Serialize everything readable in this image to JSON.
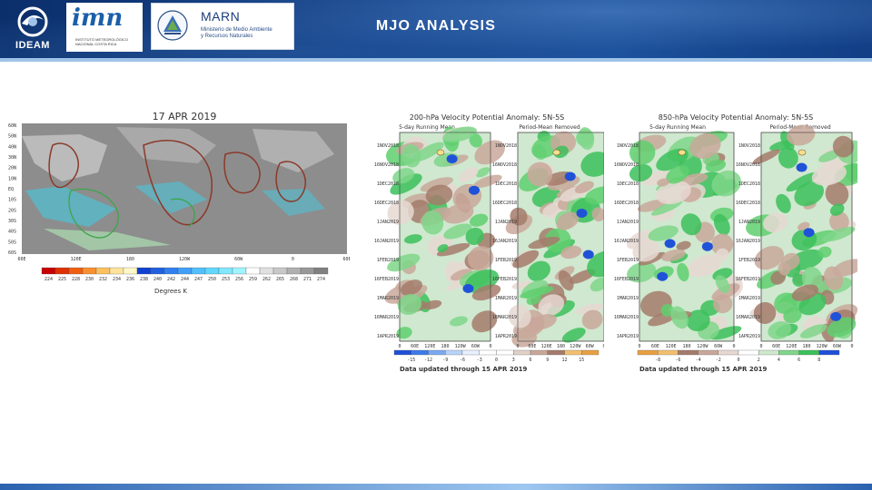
{
  "header": {
    "title": "MJO ANALYSIS",
    "logos": {
      "ideam": "IDEAM",
      "imn": "imn",
      "imn_sub": "INSTITUTO METEOROLÓGICO NACIONAL COSTA RICA",
      "marn": "MARN",
      "marn_sub_1": "Ministerio de Medio Ambiente",
      "marn_sub_2": "y Recursos Naturales"
    }
  },
  "olr_map": {
    "date": "17 APR 2019",
    "lat_labels": [
      "60N",
      "50N",
      "40N",
      "30N",
      "20N",
      "10N",
      "EQ",
      "10S",
      "20S",
      "30S",
      "40S",
      "50S",
      "60S"
    ],
    "lon_labels": [
      "60E",
      "120E",
      "180",
      "120W",
      "60W",
      "0",
      "60E"
    ],
    "colorbar_values": [
      "224",
      "225",
      "228",
      "230",
      "232",
      "234",
      "236",
      "238",
      "240",
      "242",
      "244",
      "247",
      "250",
      "253",
      "256",
      "259",
      "262",
      "265",
      "268",
      "271",
      "274"
    ],
    "colorbar_label": "Degrees K"
  },
  "chi200": {
    "title": "200-hPa Velocity Potential Anomaly: 5N-5S",
    "left_subtitle": "5-day Running Mean",
    "right_subtitle": "Period-Mean Removed",
    "dates": [
      "1NOV2018",
      "16NOV2018",
      "1DEC2018",
      "16DEC2018",
      "1JAN2019",
      "16JAN2019",
      "1FEB2019",
      "16FEB2019",
      "1MAR2019",
      "16MAR2019",
      "1APR2019"
    ],
    "lon_labels": [
      "0",
      "60E",
      "120E",
      "180",
      "120W",
      "60W",
      "0"
    ],
    "colorbar_values": [
      "-15",
      "-12",
      "-9",
      "-6",
      "-3",
      "0",
      "3",
      "6",
      "9",
      "12",
      "15"
    ],
    "updated": "Data updated through 15 APR 2019"
  },
  "u850": {
    "title": "850-hPa Velocity Potential Anomaly: 5N-5S",
    "left_subtitle": "5-day Running Mean",
    "right_subtitle": "Period-Mean Removed",
    "dates": [
      "1NOV2018",
      "16NOV2018",
      "1DEC2018",
      "16DEC2018",
      "1JAN2019",
      "16JAN2019",
      "1FEB2019",
      "16FEB2019",
      "1MAR2019",
      "16MAR2019",
      "1APR2019"
    ],
    "lon_labels": [
      "0",
      "60E",
      "120E",
      "180",
      "120W",
      "60W",
      "0"
    ],
    "colorbar_values": [
      "-8",
      "-6",
      "-4",
      "-2",
      "0",
      "2",
      "4",
      "6",
      "8"
    ],
    "updated": "Data updated through 15 APR 2019"
  },
  "colors": {
    "header_blue": "#123f86",
    "cold_blue": "#1f4fd8",
    "green": "#3cc05a",
    "brown": "#a57b6b",
    "gray": "#8a8a8a"
  }
}
